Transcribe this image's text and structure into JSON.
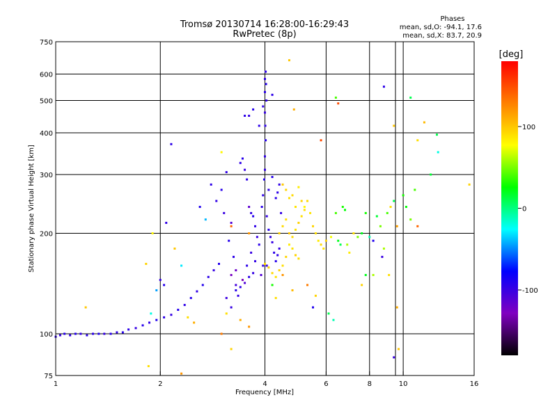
{
  "header": {
    "title_line1": "Tromsø 20130714 16:28:00-16:29:43",
    "title_line2": "RwPretec (8p)"
  },
  "stats": {
    "heading": "Phases",
    "line_o": "mean, sd,O: -94.1, 17.6",
    "line_x": "mean, sd,X:  83.7, 20.9"
  },
  "colorbar": {
    "unit_label": "[deg]",
    "range": [
      -180,
      180
    ],
    "ticks": [
      {
        "value": 100,
        "label": "100"
      },
      {
        "value": 0,
        "label": "0"
      },
      {
        "value": -100,
        "label": "-100"
      }
    ],
    "stops": [
      "#000000",
      "#8000c0",
      "#0000ff",
      "#00ffff",
      "#00ff00",
      "#ffff00",
      "#ff8000",
      "#ff0000"
    ]
  },
  "chart_data": {
    "type": "scatter",
    "xlabel": "Frequency [MHz]",
    "ylabel": "Stationary phase Virtual Height [km]",
    "xscale": "log",
    "yscale": "log",
    "xlim": [
      1,
      16
    ],
    "ylim": [
      75,
      750
    ],
    "x_ticks": [
      1,
      2,
      4,
      6,
      8,
      10,
      16
    ],
    "x_gridlines": [
      2,
      4,
      6,
      8,
      9.5,
      10
    ],
    "y_ticks": [
      75,
      100,
      200,
      300,
      400,
      500,
      600,
      750
    ],
    "y_gridlines": [
      100,
      200,
      300,
      400,
      500,
      600
    ],
    "grid": true,
    "color_variable": "phase_deg",
    "points": [
      [
        1.0,
        98,
        -95
      ],
      [
        1.03,
        99,
        -98
      ],
      [
        1.06,
        100,
        -93
      ],
      [
        1.1,
        99,
        -96
      ],
      [
        1.14,
        100,
        -92
      ],
      [
        1.18,
        100,
        -97
      ],
      [
        1.23,
        99,
        -94
      ],
      [
        1.28,
        100,
        -95
      ],
      [
        1.33,
        100,
        -90
      ],
      [
        1.38,
        100,
        -98
      ],
      [
        1.44,
        100,
        -93
      ],
      [
        1.5,
        101,
        -96
      ],
      [
        1.56,
        101,
        -92
      ],
      [
        1.62,
        103,
        -95
      ],
      [
        1.7,
        104,
        -99
      ],
      [
        1.78,
        106,
        -93
      ],
      [
        1.86,
        108,
        -96
      ],
      [
        1.95,
        110,
        -90
      ],
      [
        2.05,
        112,
        -95
      ],
      [
        2.15,
        114,
        -98
      ],
      [
        2.25,
        118,
        -92
      ],
      [
        2.35,
        122,
        -96
      ],
      [
        2.45,
        128,
        -93
      ],
      [
        2.55,
        134,
        -97
      ],
      [
        2.65,
        140,
        -91
      ],
      [
        2.75,
        148,
        -95
      ],
      [
        2.85,
        155,
        -99
      ],
      [
        2.95,
        162,
        -92
      ],
      [
        1.22,
        120,
        100
      ],
      [
        1.82,
        162,
        95
      ],
      [
        1.9,
        200,
        80
      ],
      [
        2.0,
        145,
        -98
      ],
      [
        2.05,
        140,
        -92
      ],
      [
        2.08,
        215,
        -96
      ],
      [
        2.15,
        370,
        -95
      ],
      [
        1.88,
        115,
        -20
      ],
      [
        2.4,
        112,
        90
      ],
      [
        2.5,
        108,
        110
      ],
      [
        1.85,
        80,
        90
      ],
      [
        2.3,
        76,
        120
      ],
      [
        2.8,
        280,
        -95
      ],
      [
        2.9,
        250,
        -97
      ],
      [
        3.0,
        270,
        -93
      ],
      [
        3.05,
        230,
        -100
      ],
      [
        3.1,
        305,
        -96
      ],
      [
        3.15,
        190,
        -92
      ],
      [
        3.2,
        215,
        -110
      ],
      [
        3.25,
        170,
        -95
      ],
      [
        3.3,
        140,
        -105
      ],
      [
        3.35,
        130,
        -98
      ],
      [
        3.4,
        325,
        -96
      ],
      [
        3.45,
        335,
        -93
      ],
      [
        3.5,
        310,
        -100
      ],
      [
        3.55,
        290,
        -95
      ],
      [
        3.6,
        240,
        -115
      ],
      [
        3.65,
        230,
        -98
      ],
      [
        3.7,
        225,
        -92
      ],
      [
        3.75,
        210,
        -96
      ],
      [
        3.8,
        195,
        -99
      ],
      [
        3.85,
        185,
        -94
      ],
      [
        3.9,
        150,
        -110
      ],
      [
        3.95,
        160,
        -96
      ],
      [
        3.2,
        150,
        -125
      ],
      [
        3.3,
        155,
        -120
      ],
      [
        3.45,
        145,
        -130
      ],
      [
        3.55,
        160,
        -95
      ],
      [
        3.65,
        175,
        -100
      ],
      [
        3.75,
        165,
        -97
      ],
      [
        3.1,
        128,
        -102
      ],
      [
        3.2,
        120,
        -99
      ],
      [
        3.3,
        135,
        -93
      ],
      [
        3.4,
        138,
        -96
      ],
      [
        3.5,
        142,
        -110
      ],
      [
        3.6,
        148,
        -95
      ],
      [
        3.7,
        152,
        -98
      ],
      [
        3.5,
        450,
        -95
      ],
      [
        3.6,
        450,
        -98
      ],
      [
        3.7,
        470,
        -92
      ],
      [
        3.85,
        420,
        -95
      ],
      [
        3.95,
        480,
        -96
      ],
      [
        4.0,
        530,
        -94
      ],
      [
        4.0,
        580,
        -97
      ],
      [
        4.02,
        610,
        -95
      ],
      [
        4.03,
        560,
        -92
      ],
      [
        4.04,
        500,
        -96
      ],
      [
        4.0,
        460,
        -99
      ],
      [
        4.01,
        420,
        -95
      ],
      [
        4.02,
        380,
        -93
      ],
      [
        4.0,
        340,
        -96
      ],
      [
        4.0,
        310,
        -98
      ],
      [
        3.98,
        290,
        -92
      ],
      [
        3.95,
        260,
        -96
      ],
      [
        3.92,
        240,
        -94
      ],
      [
        4.05,
        225,
        -97
      ],
      [
        4.1,
        205,
        -92
      ],
      [
        4.15,
        195,
        -96
      ],
      [
        4.2,
        188,
        -99
      ],
      [
        4.25,
        175,
        -95
      ],
      [
        4.3,
        165,
        -92
      ],
      [
        4.35,
        172,
        -96
      ],
      [
        4.4,
        180,
        -98
      ],
      [
        4.3,
        255,
        -94
      ],
      [
        4.35,
        265,
        -95
      ],
      [
        4.4,
        280,
        -96
      ],
      [
        4.45,
        230,
        -98
      ],
      [
        4.2,
        295,
        -92
      ],
      [
        4.1,
        270,
        -96
      ],
      [
        4.05,
        160,
        -100
      ],
      [
        4.0,
        162,
        90
      ],
      [
        4.1,
        158,
        95
      ],
      [
        4.2,
        152,
        92
      ],
      [
        4.3,
        148,
        88
      ],
      [
        4.4,
        155,
        96
      ],
      [
        4.5,
        160,
        90
      ],
      [
        4.6,
        170,
        94
      ],
      [
        4.7,
        185,
        85
      ],
      [
        4.8,
        195,
        92
      ],
      [
        4.9,
        205,
        88
      ],
      [
        5.0,
        215,
        95
      ],
      [
        5.1,
        225,
        90
      ],
      [
        5.2,
        240,
        80
      ],
      [
        5.3,
        250,
        92
      ],
      [
        5.4,
        230,
        88
      ],
      [
        5.5,
        210,
        94
      ],
      [
        5.6,
        200,
        90
      ],
      [
        5.7,
        190,
        85
      ],
      [
        5.8,
        185,
        92
      ],
      [
        5.9,
        180,
        88
      ],
      [
        6.0,
        190,
        95
      ],
      [
        6.2,
        195,
        75
      ],
      [
        6.4,
        230,
        40
      ],
      [
        6.5,
        190,
        20
      ],
      [
        6.6,
        185,
        10
      ],
      [
        6.7,
        240,
        30
      ],
      [
        6.8,
        235,
        25
      ],
      [
        6.9,
        185,
        60
      ],
      [
        7.0,
        175,
        85
      ],
      [
        7.2,
        200,
        90
      ],
      [
        7.4,
        195,
        50
      ],
      [
        7.6,
        200,
        20
      ],
      [
        7.8,
        230,
        30
      ],
      [
        8.0,
        195,
        -10
      ],
      [
        8.2,
        190,
        -90
      ],
      [
        8.4,
        225,
        15
      ],
      [
        8.6,
        210,
        50
      ],
      [
        8.8,
        180,
        60
      ],
      [
        9.0,
        230,
        40
      ],
      [
        9.2,
        240,
        90
      ],
      [
        9.4,
        250,
        10
      ],
      [
        8.7,
        170,
        -100
      ],
      [
        4.5,
        280,
        100
      ],
      [
        4.6,
        270,
        95
      ],
      [
        4.7,
        255,
        90
      ],
      [
        4.8,
        260,
        92
      ],
      [
        4.9,
        240,
        88
      ],
      [
        5.0,
        275,
        85
      ],
      [
        5.1,
        250,
        95
      ],
      [
        5.2,
        235,
        90
      ],
      [
        4.4,
        200,
        95
      ],
      [
        4.5,
        210,
        92
      ],
      [
        4.6,
        220,
        90
      ],
      [
        4.7,
        200,
        100
      ],
      [
        4.8,
        180,
        88
      ],
      [
        4.9,
        172,
        95
      ],
      [
        5.0,
        168,
        90
      ],
      [
        4.2,
        140,
        30
      ],
      [
        4.3,
        128,
        90
      ],
      [
        4.5,
        150,
        120
      ],
      [
        4.8,
        135,
        105
      ],
      [
        5.3,
        140,
        130
      ],
      [
        5.6,
        130,
        95
      ],
      [
        5.5,
        120,
        -90
      ],
      [
        6.1,
        115,
        10
      ],
      [
        6.3,
        110,
        -10
      ],
      [
        7.6,
        140,
        95
      ],
      [
        7.8,
        150,
        20
      ],
      [
        8.2,
        150,
        60
      ],
      [
        9.1,
        150,
        90
      ],
      [
        9.6,
        120,
        110
      ],
      [
        9.7,
        90,
        100
      ],
      [
        9.4,
        85,
        -100
      ],
      [
        4.7,
        660,
        100
      ],
      [
        4.85,
        470,
        110
      ],
      [
        4.2,
        520,
        -95
      ],
      [
        6.4,
        510,
        40
      ],
      [
        6.5,
        490,
        150
      ],
      [
        8.8,
        550,
        -95
      ],
      [
        10.5,
        510,
        10
      ],
      [
        9.4,
        420,
        100
      ],
      [
        11.5,
        430,
        105
      ],
      [
        11.0,
        380,
        90
      ],
      [
        12.5,
        395,
        10
      ],
      [
        12.6,
        350,
        -20
      ],
      [
        15.5,
        280,
        95
      ],
      [
        12.0,
        300,
        15
      ],
      [
        5.8,
        380,
        150
      ],
      [
        10.0,
        260,
        30
      ],
      [
        10.8,
        270,
        40
      ],
      [
        10.2,
        240,
        25
      ],
      [
        10.5,
        220,
        50
      ],
      [
        11.0,
        210,
        140
      ],
      [
        9.6,
        210,
        115
      ],
      [
        3.0,
        350,
        80
      ],
      [
        3.2,
        210,
        140
      ],
      [
        3.6,
        200,
        120
      ],
      [
        2.7,
        220,
        -40
      ],
      [
        2.6,
        240,
        -90
      ],
      [
        2.2,
        180,
        100
      ],
      [
        2.3,
        160,
        -30
      ],
      [
        1.95,
        135,
        -45
      ],
      [
        3.1,
        115,
        90
      ],
      [
        3.4,
        110,
        110
      ],
      [
        3.6,
        105,
        120
      ],
      [
        3.2,
        90,
        95
      ],
      [
        3.0,
        100,
        130
      ]
    ]
  }
}
